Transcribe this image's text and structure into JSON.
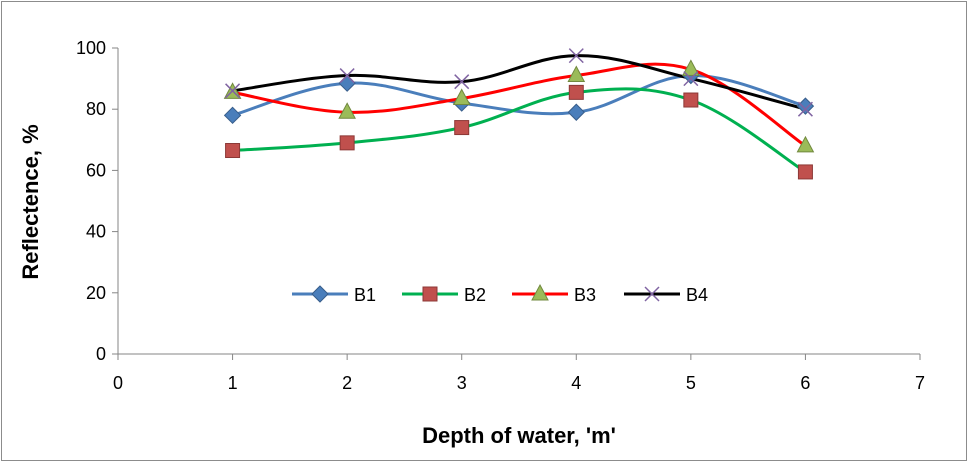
{
  "chart_data": {
    "type": "scatter",
    "xlabel": "Depth of water, 'm'",
    "ylabel": "Reflectence, %",
    "xlim": [
      0,
      7
    ],
    "ylim": [
      0,
      100
    ],
    "x_ticks": [
      "0",
      "1",
      "2",
      "3",
      "4",
      "5",
      "6",
      "7"
    ],
    "y_ticks": [
      "0",
      "20",
      "40",
      "60",
      "80",
      "100"
    ],
    "grid": false,
    "legend_position": "inside-bottom-center",
    "smoothed_lines": true,
    "series": [
      {
        "name": "B1",
        "x": [
          1,
          2,
          3,
          4,
          5,
          6
        ],
        "values": [
          78,
          88.5,
          82,
          79,
          91,
          81
        ],
        "color": "#4a7ebb",
        "marker": "diamond"
      },
      {
        "name": "B2",
        "x": [
          1,
          2,
          3,
          4,
          5,
          6
        ],
        "values": [
          66.5,
          69,
          74,
          85.5,
          83,
          59.5
        ],
        "color": "#c0504d",
        "marker": "square",
        "line_color": "#00b050"
      },
      {
        "name": "B3",
        "x": [
          1,
          2,
          3,
          4,
          5,
          6
        ],
        "values": [
          85.5,
          79,
          83.5,
          91,
          93,
          68
        ],
        "color": "#9bbb59",
        "marker": "triangle",
        "line_color": "#ff0000"
      },
      {
        "name": "B4",
        "x": [
          1,
          2,
          3,
          4,
          5,
          6
        ],
        "values": [
          86,
          91,
          89,
          97.5,
          90,
          80
        ],
        "color": "#000000",
        "marker": "x",
        "marker_color": "#8064a2"
      }
    ]
  }
}
